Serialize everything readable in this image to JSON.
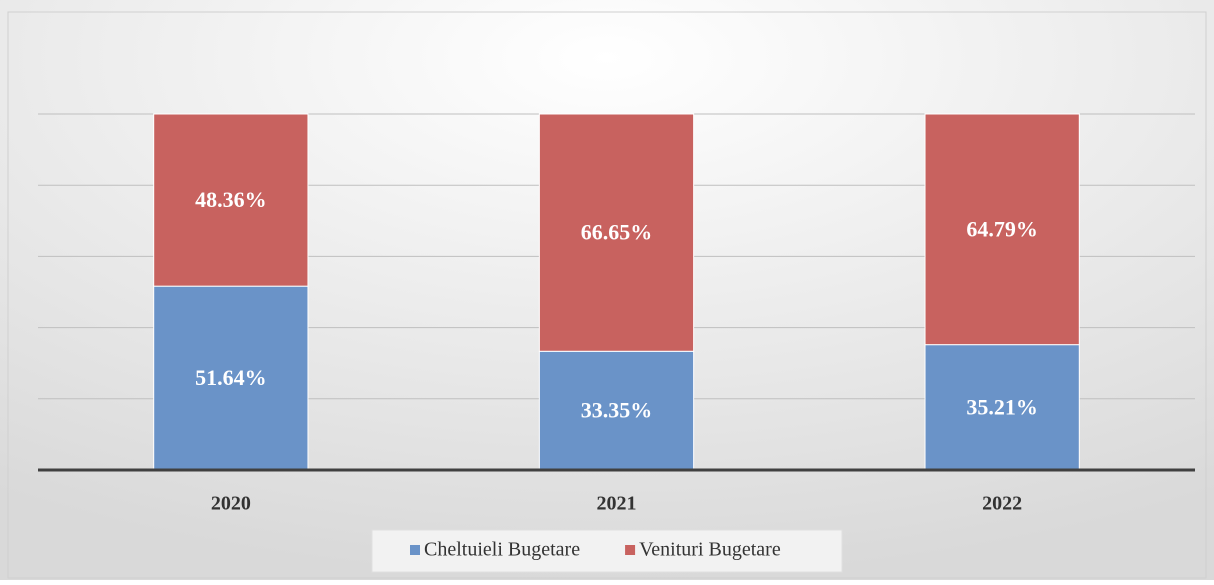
{
  "chart_data": {
    "type": "stacked_bar",
    "categories": [
      "2020",
      "2021",
      "2022"
    ],
    "series": [
      {
        "name": "Cheltuieli Bugetare",
        "color": "#6a93c8",
        "values": [
          51.64,
          33.35,
          35.21
        ],
        "value_labels": [
          "51.64%",
          "33.35%",
          "35.21%"
        ]
      },
      {
        "name": "Venituri Bugetare",
        "color": "#c8625f",
        "values": [
          48.36,
          66.65,
          64.79
        ],
        "value_labels": [
          "48.36%",
          "66.65%",
          "64.79%"
        ]
      }
    ],
    "ylim": [
      0,
      100
    ],
    "yticks": [
      0,
      20,
      40,
      60,
      80,
      100
    ],
    "grid": true,
    "legend": "bottom"
  }
}
